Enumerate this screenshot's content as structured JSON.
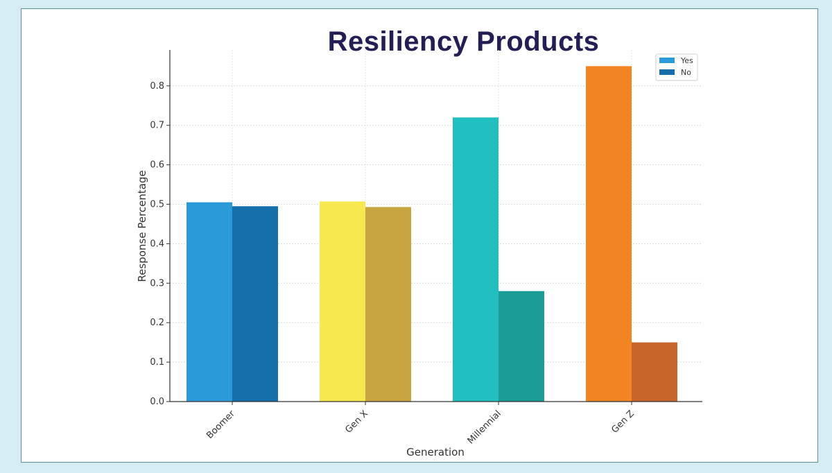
{
  "chart_data": {
    "type": "bar",
    "title": "Resiliency Products",
    "xlabel": "Generation",
    "ylabel": "Response Percentage",
    "categories": [
      "Boomer",
      "Gen X",
      "Millennial",
      "Gen Z"
    ],
    "series": [
      {
        "name": "Yes",
        "values": [
          0.505,
          0.507,
          0.72,
          0.85
        ]
      },
      {
        "name": "No",
        "values": [
          0.495,
          0.493,
          0.28,
          0.15
        ]
      }
    ],
    "bar_colors": {
      "Yes": [
        "#2b9ad8",
        "#f7e84f",
        "#22bfc0",
        "#f28522"
      ],
      "No": [
        "#136eaa",
        "#c8a540",
        "#1b9c97",
        "#c8652a"
      ]
    },
    "legend_colors": {
      "Yes": "#2b9ad8",
      "No": "#136eaa"
    },
    "yticks": [
      "0.0",
      "0.1",
      "0.2",
      "0.3",
      "0.4",
      "0.5",
      "0.6",
      "0.7",
      "0.8"
    ],
    "ylim": [
      0,
      0.9
    ],
    "grid": true,
    "legend_position": "top-right"
  }
}
